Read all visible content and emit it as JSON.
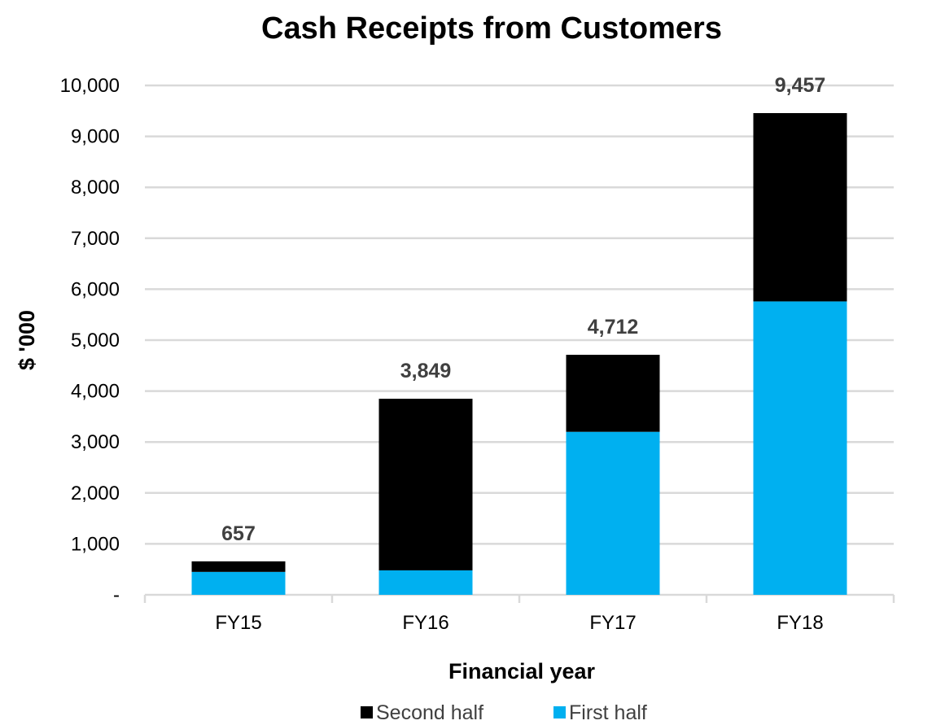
{
  "chart_data": {
    "type": "bar",
    "stacked": true,
    "title": "Cash Receipts from Customers",
    "xlabel": "Financial year",
    "ylabel": "$ '000",
    "categories": [
      "FY15",
      "FY16",
      "FY17",
      "FY18"
    ],
    "series": [
      {
        "name": "First half",
        "color": "#00b0f0",
        "values": [
          450,
          480,
          3200,
          5760
        ]
      },
      {
        "name": "Second half",
        "color": "#000000",
        "values": [
          207,
          3369,
          1512,
          3697
        ]
      }
    ],
    "totals": [
      657,
      3849,
      4712,
      9457
    ],
    "total_labels": [
      "657",
      "3,849",
      "4,712",
      "9,457"
    ],
    "ylim": [
      0,
      10000
    ],
    "yticks": [
      0,
      1000,
      2000,
      3000,
      4000,
      5000,
      6000,
      7000,
      8000,
      9000,
      10000
    ],
    "ytick_labels": [
      "-",
      "1,000",
      "2,000",
      "3,000",
      "4,000",
      "5,000",
      "6,000",
      "7,000",
      "8,000",
      "9,000",
      "10,000"
    ],
    "grid": true,
    "legend_position": "bottom",
    "legend_order": [
      "Second half",
      "First half"
    ]
  }
}
